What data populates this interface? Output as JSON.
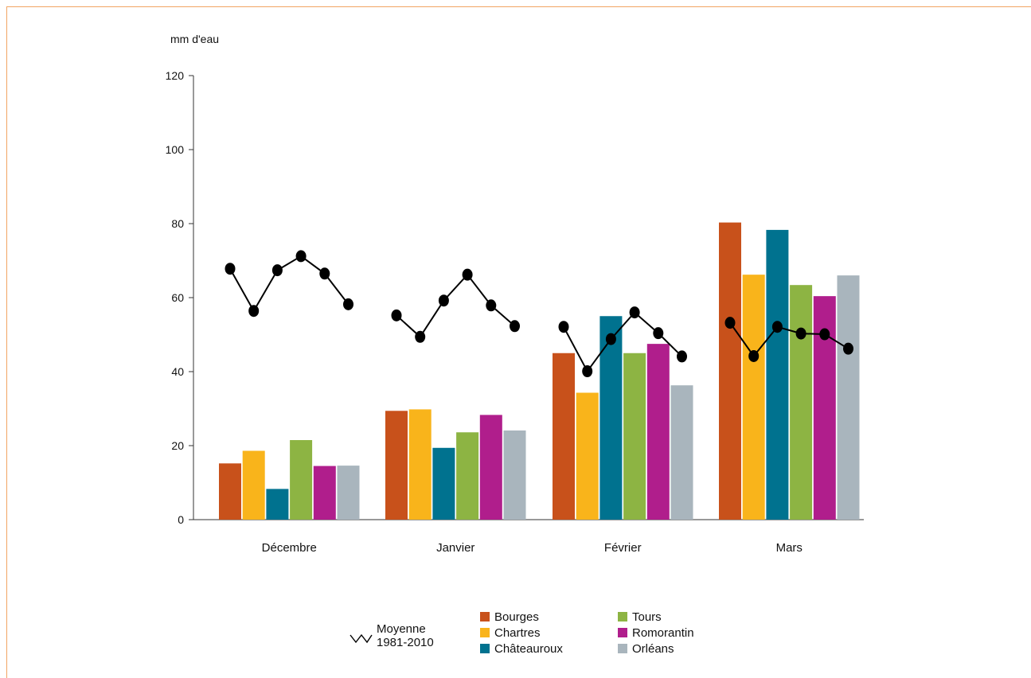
{
  "chart_data": {
    "type": "bar",
    "ylabel": "mm d'eau",
    "ylim": [
      0,
      120
    ],
    "yticks": [
      0,
      20,
      40,
      60,
      80,
      100,
      120
    ],
    "categories": [
      "Décembre",
      "Janvier",
      "Février",
      "Mars"
    ],
    "series": [
      {
        "name": "Bourges",
        "color": "#c8511b",
        "values": [
          15.2,
          29.4,
          45.0,
          80.3
        ]
      },
      {
        "name": "Chartres",
        "color": "#f9b41b",
        "values": [
          18.6,
          29.8,
          34.3,
          66.2
        ]
      },
      {
        "name": "Châteauroux",
        "color": "#00728f",
        "values": [
          8.3,
          19.4,
          55.0,
          78.3
        ]
      },
      {
        "name": "Tours",
        "color": "#8db443",
        "values": [
          21.5,
          23.6,
          45.0,
          63.4
        ]
      },
      {
        "name": "Romorantin",
        "color": "#b01e8c",
        "values": [
          14.5,
          28.3,
          47.5,
          60.4
        ]
      },
      {
        "name": "Orléans",
        "color": "#a9b5bd",
        "values": [
          14.6,
          24.1,
          36.3,
          66.0
        ]
      }
    ],
    "average": {
      "name": "Moyenne 1981-2010",
      "color": "#000000",
      "values": [
        [
          67.8,
          56.4,
          67.4,
          71.2,
          66.5,
          58.2
        ],
        [
          55.2,
          49.4,
          59.2,
          66.2,
          57.9,
          52.3
        ],
        [
          52.1,
          40.1,
          48.8,
          56.0,
          50.4,
          44.1
        ],
        [
          53.2,
          44.2,
          52.1,
          50.3,
          50.1,
          46.2
        ]
      ]
    },
    "legend": {
      "position": "bottom",
      "average_lines": [
        "Moyenne",
        "1981-2010"
      ]
    },
    "grid": false
  }
}
